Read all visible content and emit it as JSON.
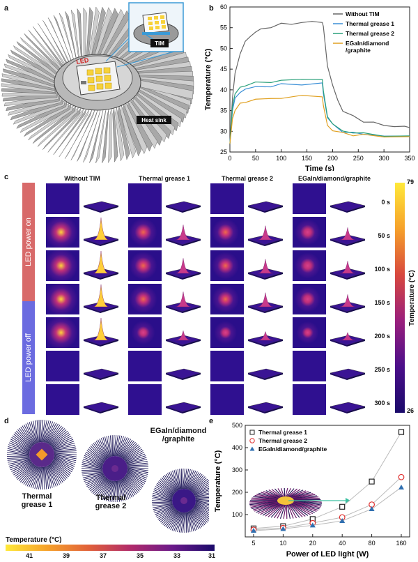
{
  "panel_labels": {
    "a": "a",
    "b": "b",
    "c": "c",
    "d": "d",
    "e": "e"
  },
  "panel_a": {
    "led_label": "LED",
    "tim_label": "TIM",
    "heatsink_label": "Heat sink"
  },
  "panel_c": {
    "columns": [
      "Without TIM",
      "Thermal grease 1",
      "Thermal grease 2",
      "EGaIn/diamond/graphite"
    ],
    "times": [
      "0 s",
      "50 s",
      "100 s",
      "150 s",
      "200 s",
      "250 s",
      "300 s"
    ],
    "side_on": "LED power on",
    "side_off": "LED power off",
    "colorbar_max": "79",
    "colorbar_min": "26",
    "colorbar_title": "Temperature (°C)",
    "peak_intensity": [
      [
        0,
        1,
        1,
        1,
        1,
        0,
        0
      ],
      [
        0,
        0.6,
        0.6,
        0.6,
        0.3,
        0,
        0
      ],
      [
        0,
        0.55,
        0.55,
        0.55,
        0.25,
        0,
        0
      ],
      [
        0,
        0.45,
        0.45,
        0.45,
        0.2,
        0,
        0
      ]
    ]
  },
  "panel_d": {
    "labels": [
      "Thermal\ngrease 1",
      "Thermal\ngrease 2",
      "EGaIn/diamond\n/graphite"
    ],
    "colorbar_title": "Temperature (°C)",
    "colorbar_ticks": [
      "41",
      "39",
      "37",
      "35",
      "33",
      "31"
    ]
  },
  "chart_data": [
    {
      "type": "line",
      "panel": "b",
      "xlabel": "Time (s)",
      "ylabel": "Temperature (°C)",
      "xlim": [
        0,
        350
      ],
      "ylim": [
        25,
        60
      ],
      "xticks": [
        0,
        50,
        100,
        150,
        200,
        250,
        300,
        350
      ],
      "yticks": [
        25,
        30,
        35,
        40,
        45,
        50,
        55,
        60
      ],
      "series": [
        {
          "name": "Without TIM",
          "color": "#666666",
          "x": [
            0,
            5,
            10,
            20,
            30,
            40,
            50,
            60,
            80,
            100,
            120,
            140,
            160,
            180,
            182,
            190,
            200,
            210,
            220,
            240,
            260,
            280,
            300,
            320,
            340,
            350
          ],
          "y": [
            27,
            38,
            44,
            49,
            51.5,
            53,
            54,
            54.5,
            55.3,
            55.8,
            56,
            56.2,
            56.4,
            56.5,
            55,
            46,
            41,
            37.5,
            35,
            33.5,
            32.5,
            32,
            31.5,
            31.2,
            31,
            30.9
          ]
        },
        {
          "name": "Thermal grease 1",
          "color": "#3a8fd6",
          "x": [
            0,
            5,
            10,
            20,
            30,
            50,
            80,
            100,
            140,
            180,
            182,
            190,
            200,
            220,
            240,
            260,
            300,
            350
          ],
          "y": [
            27,
            35,
            38,
            39.5,
            40.2,
            40.6,
            41,
            41.2,
            41.4,
            41.6,
            39,
            33.5,
            31.5,
            30,
            29.6,
            29.3,
            29,
            28.8
          ]
        },
        {
          "name": "Thermal grease 2",
          "color": "#2aa07a",
          "x": [
            0,
            5,
            10,
            20,
            30,
            50,
            80,
            100,
            140,
            180,
            182,
            190,
            200,
            220,
            240,
            260,
            300,
            350
          ],
          "y": [
            27,
            36,
            39,
            40.5,
            41.2,
            41.6,
            42,
            42.2,
            42.5,
            42.7,
            39.5,
            33.8,
            31.6,
            30.1,
            29.7,
            29.4,
            29.1,
            28.9
          ]
        },
        {
          "name": "EGaIn/diamond\n/graphite",
          "color": "#e0a020",
          "x": [
            0,
            5,
            10,
            20,
            30,
            50,
            80,
            100,
            140,
            180,
            182,
            190,
            200,
            220,
            240,
            260,
            300,
            350
          ],
          "y": [
            27,
            33,
            35,
            36.5,
            37.2,
            37.6,
            37.9,
            38.1,
            38.4,
            38.6,
            36,
            31.5,
            30.2,
            29.5,
            29.2,
            29,
            28.8,
            28.7
          ]
        }
      ],
      "legend": "top-right"
    },
    {
      "type": "line",
      "panel": "e",
      "xlabel": "Power of LED light (W)",
      "ylabel": "Temperature (°C)",
      "categories": [
        "5",
        "10",
        "20",
        "40",
        "80",
        "160"
      ],
      "ylim": [
        0,
        500
      ],
      "yticks": [
        100,
        200,
        300,
        400,
        500
      ],
      "series": [
        {
          "name": "Thermal grease 1",
          "color": "#222222",
          "marker": "square",
          "values": [
            38,
            48,
            80,
            135,
            248,
            470
          ]
        },
        {
          "name": "Thermal grease 2",
          "color": "#e03030",
          "marker": "circle",
          "values": [
            32,
            40,
            62,
            88,
            145,
            268
          ]
        },
        {
          "name": "EGaIn/diamond/graphite",
          "color": "#2f6fb0",
          "marker": "triangle",
          "values": [
            28,
            36,
            52,
            72,
            125,
            222
          ]
        }
      ],
      "legend": "top-left"
    }
  ]
}
